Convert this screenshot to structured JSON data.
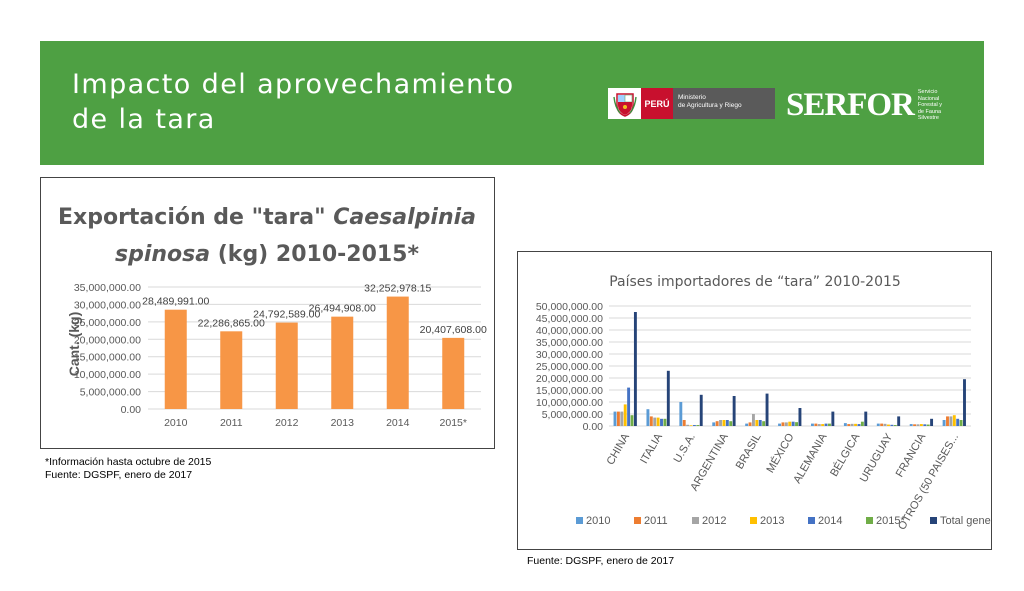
{
  "header": {
    "title_line1": "Impacto del aprovechamiento",
    "title_line2": "de la tara",
    "logo_country": "PERÚ",
    "logo_ministry_line1": "Ministerio",
    "logo_ministry_line2": "de Agricultura y Riego",
    "logo_brand": "SERFOR",
    "logo_brand_sub": [
      "Servicio",
      "Nacional",
      "Forestal y",
      "de Fauna",
      "Silvestre"
    ],
    "color_bg": "#4ea043"
  },
  "chart1": {
    "title_line1_a": "Exportación de \"tara\" ",
    "title_line1_b": "Caesalpinia",
    "title_line2_a": "spinosa",
    "title_line2_b": " (kg) 2010-2015*",
    "ylabel": "Cant. (kg)",
    "yticks": [
      "0.00",
      "5,000,000.00",
      "10,000,000.00",
      "15,000,000.00",
      "20,000,000.00",
      "25,000,000.00",
      "30,000,000.00",
      "35,000,000.00"
    ],
    "data_labels": [
      "28,489,991.00",
      "22,286,865.00",
      "24,792,589.00",
      "26,494,908.00",
      "32,252,978.15",
      "20,407,608.00"
    ]
  },
  "chart2": {
    "title": "Países importadores de “tara” 2010-2015",
    "yticks": [
      "0.00",
      "5,000,000.00",
      "10,000,000.00",
      "15,000,000.00",
      "20,000,000.00",
      "25,000,000.00",
      "30,000,000.00",
      "35,000,000.00",
      "40,000,000.00",
      "45,000,000.00",
      "50,000,000.00"
    ]
  },
  "notes": {
    "note1_line1": "*Información hasta octubre de 2015",
    "note1_line2": "Fuente: DGSPF, enero de 2017",
    "note2": "Fuente: DGSPF, enero de 2017"
  },
  "chart_data": [
    {
      "type": "bar",
      "categories": [
        "2010",
        "2011",
        "2012",
        "2013",
        "2014",
        "2015*"
      ],
      "values": [
        28489991.0,
        22286865.0,
        24792589.0,
        26494908.0,
        32252978.15,
        20407608.0
      ],
      "ylabel": "Cant. (kg)",
      "ylim": [
        0,
        35000000
      ],
      "grid": true,
      "colors": {
        "bar": "#f79646"
      }
    },
    {
      "type": "bar",
      "title": "Países importadores de “tara” 2010-2015",
      "categories": [
        "CHINA",
        "ITALIA",
        "U.S.A.",
        "ARGENTINA",
        "BRASIL",
        "MÉXICO",
        "ALEMANIA",
        "BÉLGICA",
        "URUGUAY",
        "FRANCIA",
        "OTROS (50 PAISES..."
      ],
      "series": [
        {
          "name": "2010",
          "color": "#5b9bd5",
          "values": [
            6000000,
            7000000,
            10000000,
            1500000,
            1000000,
            1000000,
            1000000,
            1200000,
            1000000,
            800000,
            2500000
          ]
        },
        {
          "name": "2011",
          "color": "#ed7d31",
          "values": [
            6000000,
            4000000,
            2500000,
            2000000,
            1500000,
            1500000,
            1000000,
            800000,
            1000000,
            700000,
            4000000
          ]
        },
        {
          "name": "2012",
          "color": "#a5a5a5",
          "values": [
            6000000,
            3500000,
            500000,
            2500000,
            5000000,
            1500000,
            800000,
            900000,
            900000,
            700000,
            4000000
          ]
        },
        {
          "name": "2013",
          "color": "#ffc000",
          "values": [
            9000000,
            3500000,
            300000,
            2500000,
            2500000,
            1800000,
            800000,
            900000,
            600000,
            800000,
            4500000
          ]
        },
        {
          "name": "2014",
          "color": "#4472c4",
          "values": [
            16000000,
            3000000,
            400000,
            2500000,
            2500000,
            1800000,
            1000000,
            800000,
            500000,
            700000,
            3000000
          ]
        },
        {
          "name": "2015*",
          "color": "#70ad47",
          "values": [
            4500000,
            3000000,
            400000,
            2000000,
            2000000,
            1600000,
            1000000,
            1800000,
            400000,
            600000,
            2500000
          ]
        },
        {
          "name": "Total general (kg)",
          "color": "#264478",
          "values": [
            47500000,
            23000000,
            13000000,
            12500000,
            13500000,
            7500000,
            6000000,
            6000000,
            4000000,
            3000000,
            19500000
          ]
        }
      ],
      "ylim": [
        0,
        50000000
      ],
      "grid": true,
      "legend": "bottom"
    }
  ]
}
